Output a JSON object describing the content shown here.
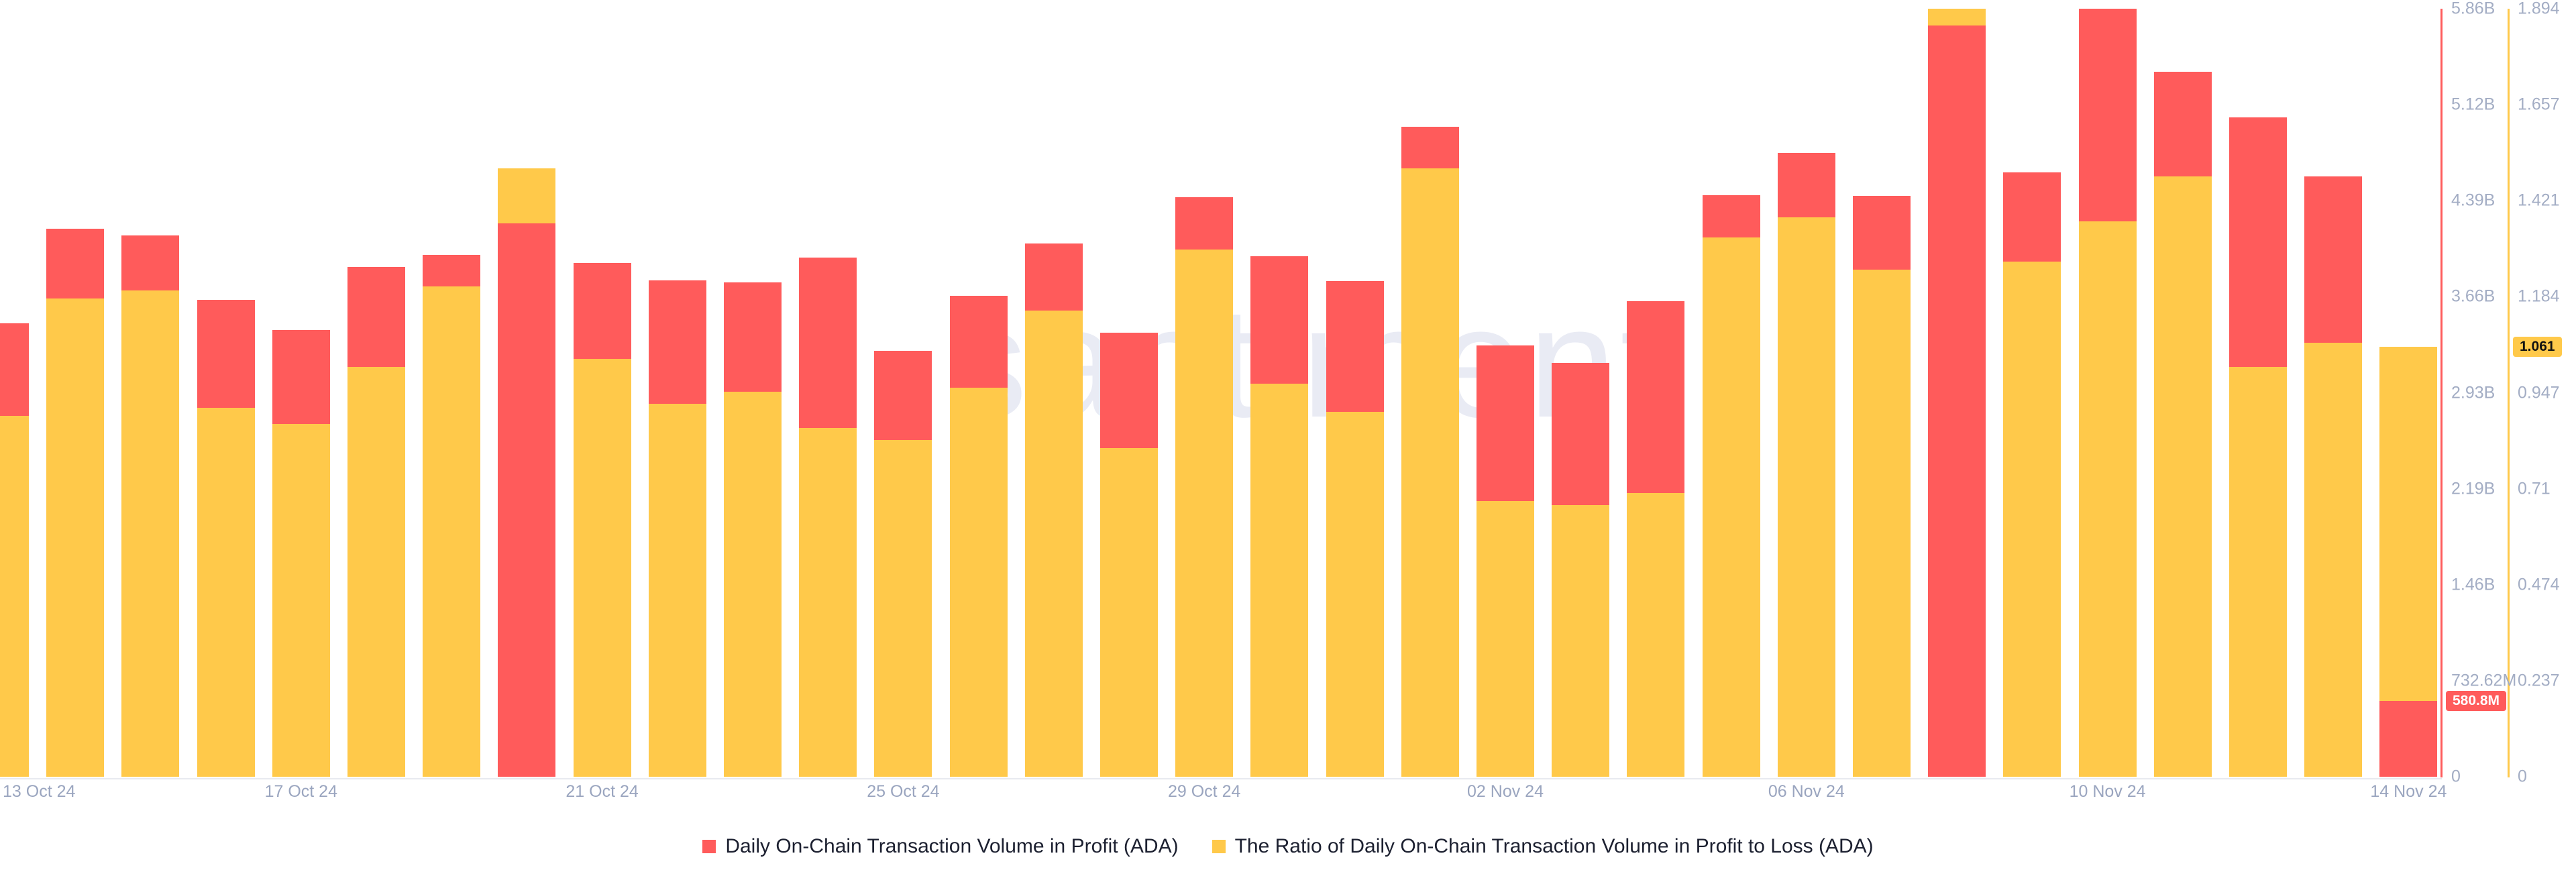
{
  "watermark": "santiment",
  "colors": {
    "volume_red": "#ff5b5b",
    "ratio_yellow": "#ffc94a",
    "axis_label": "#a3adc4",
    "date_label": "#9aa5bf",
    "legend_text": "#1c2030",
    "watermark_gray": "#e9ebf4",
    "baseline_gray": "#e8eaf0",
    "badge_ratio_text": "#111111",
    "badge_volume_text": "#ffffff"
  },
  "legend": {
    "items": [
      {
        "label": "Daily On-Chain Transaction Volume in Profit (ADA)",
        "color": "#ff5b5b"
      },
      {
        "label": "The Ratio of Daily On-Chain Transaction Volume in Profit to Loss (ADA)",
        "color": "#ffc94a"
      }
    ]
  },
  "badges": {
    "ratio_value": "1.061",
    "volume_value": "580.8M"
  },
  "right_axis_volume": {
    "color": "#ff5b5b",
    "tick_labels": [
      "5.86B",
      "5.12B",
      "4.39B",
      "3.66B",
      "2.93B",
      "2.19B",
      "1.46B",
      "732.62M",
      "0"
    ]
  },
  "right_axis_ratio": {
    "color": "#ffc94a",
    "tick_labels": [
      "1.894",
      "1.657",
      "1.421",
      "1.184",
      "0.947",
      "0.71",
      "0.474",
      "0.237",
      "0"
    ]
  },
  "x_axis": {
    "tick_labels": [
      "13 Oct 24",
      "17 Oct 24",
      "21 Oct 24",
      "25 Oct 24",
      "29 Oct 24",
      "02 Nov 24",
      "06 Nov 24",
      "10 Nov 24",
      "14 Nov 24"
    ],
    "tick_day_indices": [
      0,
      4,
      8,
      12,
      16,
      20,
      24,
      28,
      32
    ]
  },
  "chart_data": {
    "type": "bar",
    "x": [
      "13 Oct 24",
      "14 Oct 24",
      "15 Oct 24",
      "16 Oct 24",
      "17 Oct 24",
      "18 Oct 24",
      "19 Oct 24",
      "20 Oct 24",
      "21 Oct 24",
      "22 Oct 24",
      "23 Oct 24",
      "24 Oct 24",
      "25 Oct 24",
      "26 Oct 24",
      "27 Oct 24",
      "28 Oct 24",
      "29 Oct 24",
      "30 Oct 24",
      "31 Oct 24",
      "01 Nov 24",
      "02 Nov 24",
      "03 Nov 24",
      "04 Nov 24",
      "05 Nov 24",
      "06 Nov 24",
      "07 Nov 24",
      "08 Nov 24",
      "09 Nov 24",
      "10 Nov 24",
      "11 Nov 24",
      "12 Nov 24",
      "13 Nov 24",
      "14 Nov 24"
    ],
    "series": [
      {
        "name": "Daily On-Chain Transaction Volume in Profit (ADA)",
        "unit": "ADA, billions",
        "color": "#ff5b5b",
        "axis": "volume",
        "values": [
          3.46,
          4.18,
          4.13,
          3.64,
          3.41,
          3.89,
          3.98,
          4.22,
          3.92,
          3.79,
          3.77,
          3.96,
          3.25,
          3.67,
          4.07,
          3.39,
          4.42,
          3.97,
          3.78,
          4.96,
          3.29,
          3.16,
          3.63,
          4.44,
          4.76,
          4.43,
          5.73,
          4.61,
          5.86,
          5.38,
          5.03,
          4.58,
          0.5808
        ]
      },
      {
        "name": "The Ratio of Daily On-Chain Transaction Volume in Profit to Loss (ADA)",
        "unit": "ratio",
        "color": "#ffc94a",
        "axis": "ratio",
        "values": [
          0.89,
          1.18,
          1.2,
          0.91,
          0.87,
          1.01,
          1.21,
          1.5,
          1.03,
          0.92,
          0.95,
          0.86,
          0.83,
          0.96,
          1.15,
          0.81,
          1.3,
          0.97,
          0.9,
          1.5,
          0.68,
          0.67,
          0.7,
          1.33,
          1.38,
          1.25,
          1.894,
          1.27,
          1.37,
          1.48,
          1.01,
          1.07,
          1.061
        ]
      }
    ],
    "axes": {
      "volume_axis": {
        "min": 0,
        "max_billions": 5.86,
        "position": "right-inner",
        "line_color": "#ff5b5b"
      },
      "ratio_axis": {
        "min": 0,
        "max": 1.894,
        "position": "right-outer",
        "line_color": "#ffc94a"
      }
    },
    "highlighted_values": {
      "last_day_ratio": 1.061,
      "last_day_volume": "580.8M"
    },
    "title": "",
    "grid": false,
    "legend_position": "bottom-center",
    "overlay_style": "overlapping bars; smaller normalized series drawn in front of taller one"
  }
}
